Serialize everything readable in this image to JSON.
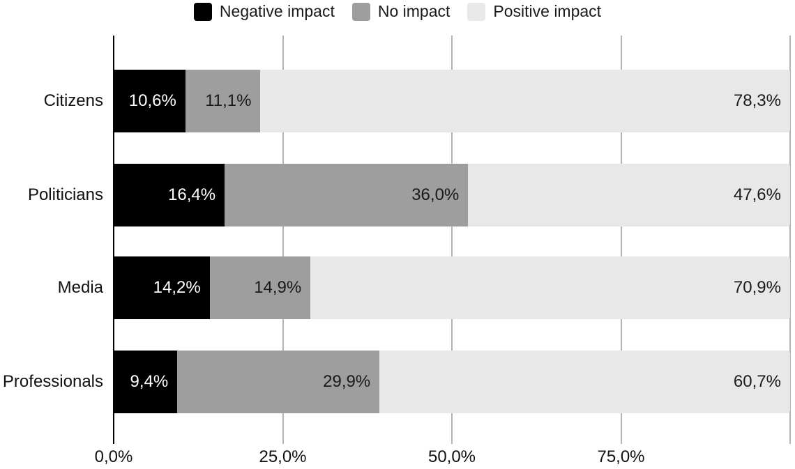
{
  "chart_data": {
    "type": "bar",
    "orientation": "horizontal",
    "stacked": true,
    "title": "",
    "categories": [
      "Citizens",
      "Politicians",
      "Media",
      "Professionals"
    ],
    "series": [
      {
        "name": "Negative impact",
        "color": "#000000",
        "label_color": "#ffffff",
        "values": [
          10.6,
          16.4,
          14.2,
          9.4
        ],
        "labels": [
          "10,6%",
          "16,4%",
          "14,2%",
          "9,4%"
        ]
      },
      {
        "name": "No impact",
        "color": "#9e9e9e",
        "label_color": "#1a1a1a",
        "values": [
          11.1,
          36.0,
          14.9,
          29.9
        ],
        "labels": [
          "11,1%",
          "36,0%",
          "14,9%",
          "29,9%"
        ]
      },
      {
        "name": "Positive impact",
        "color": "#e8e8e8",
        "label_color": "#1a1a1a",
        "values": [
          78.3,
          47.6,
          70.9,
          60.7
        ],
        "labels": [
          "78,3%",
          "47,6%",
          "70,9%",
          "60,7%"
        ]
      }
    ],
    "x_axis": {
      "range": [
        0,
        100
      ],
      "gridlines": [
        25,
        50,
        75,
        100
      ],
      "tick_labels": [
        {
          "pos": 0,
          "label": "0,0%"
        },
        {
          "pos": 25,
          "label": "25,0%"
        },
        {
          "pos": 50,
          "label": "50,0%"
        },
        {
          "pos": 75,
          "label": "75,0%"
        }
      ]
    },
    "legend_position": "top",
    "grid": true,
    "palette": {
      "background": "#ffffff",
      "axis": "#000000",
      "gridline": "#b3b3b3",
      "label_dark": "#111111",
      "label_light": "#ffffff"
    }
  }
}
